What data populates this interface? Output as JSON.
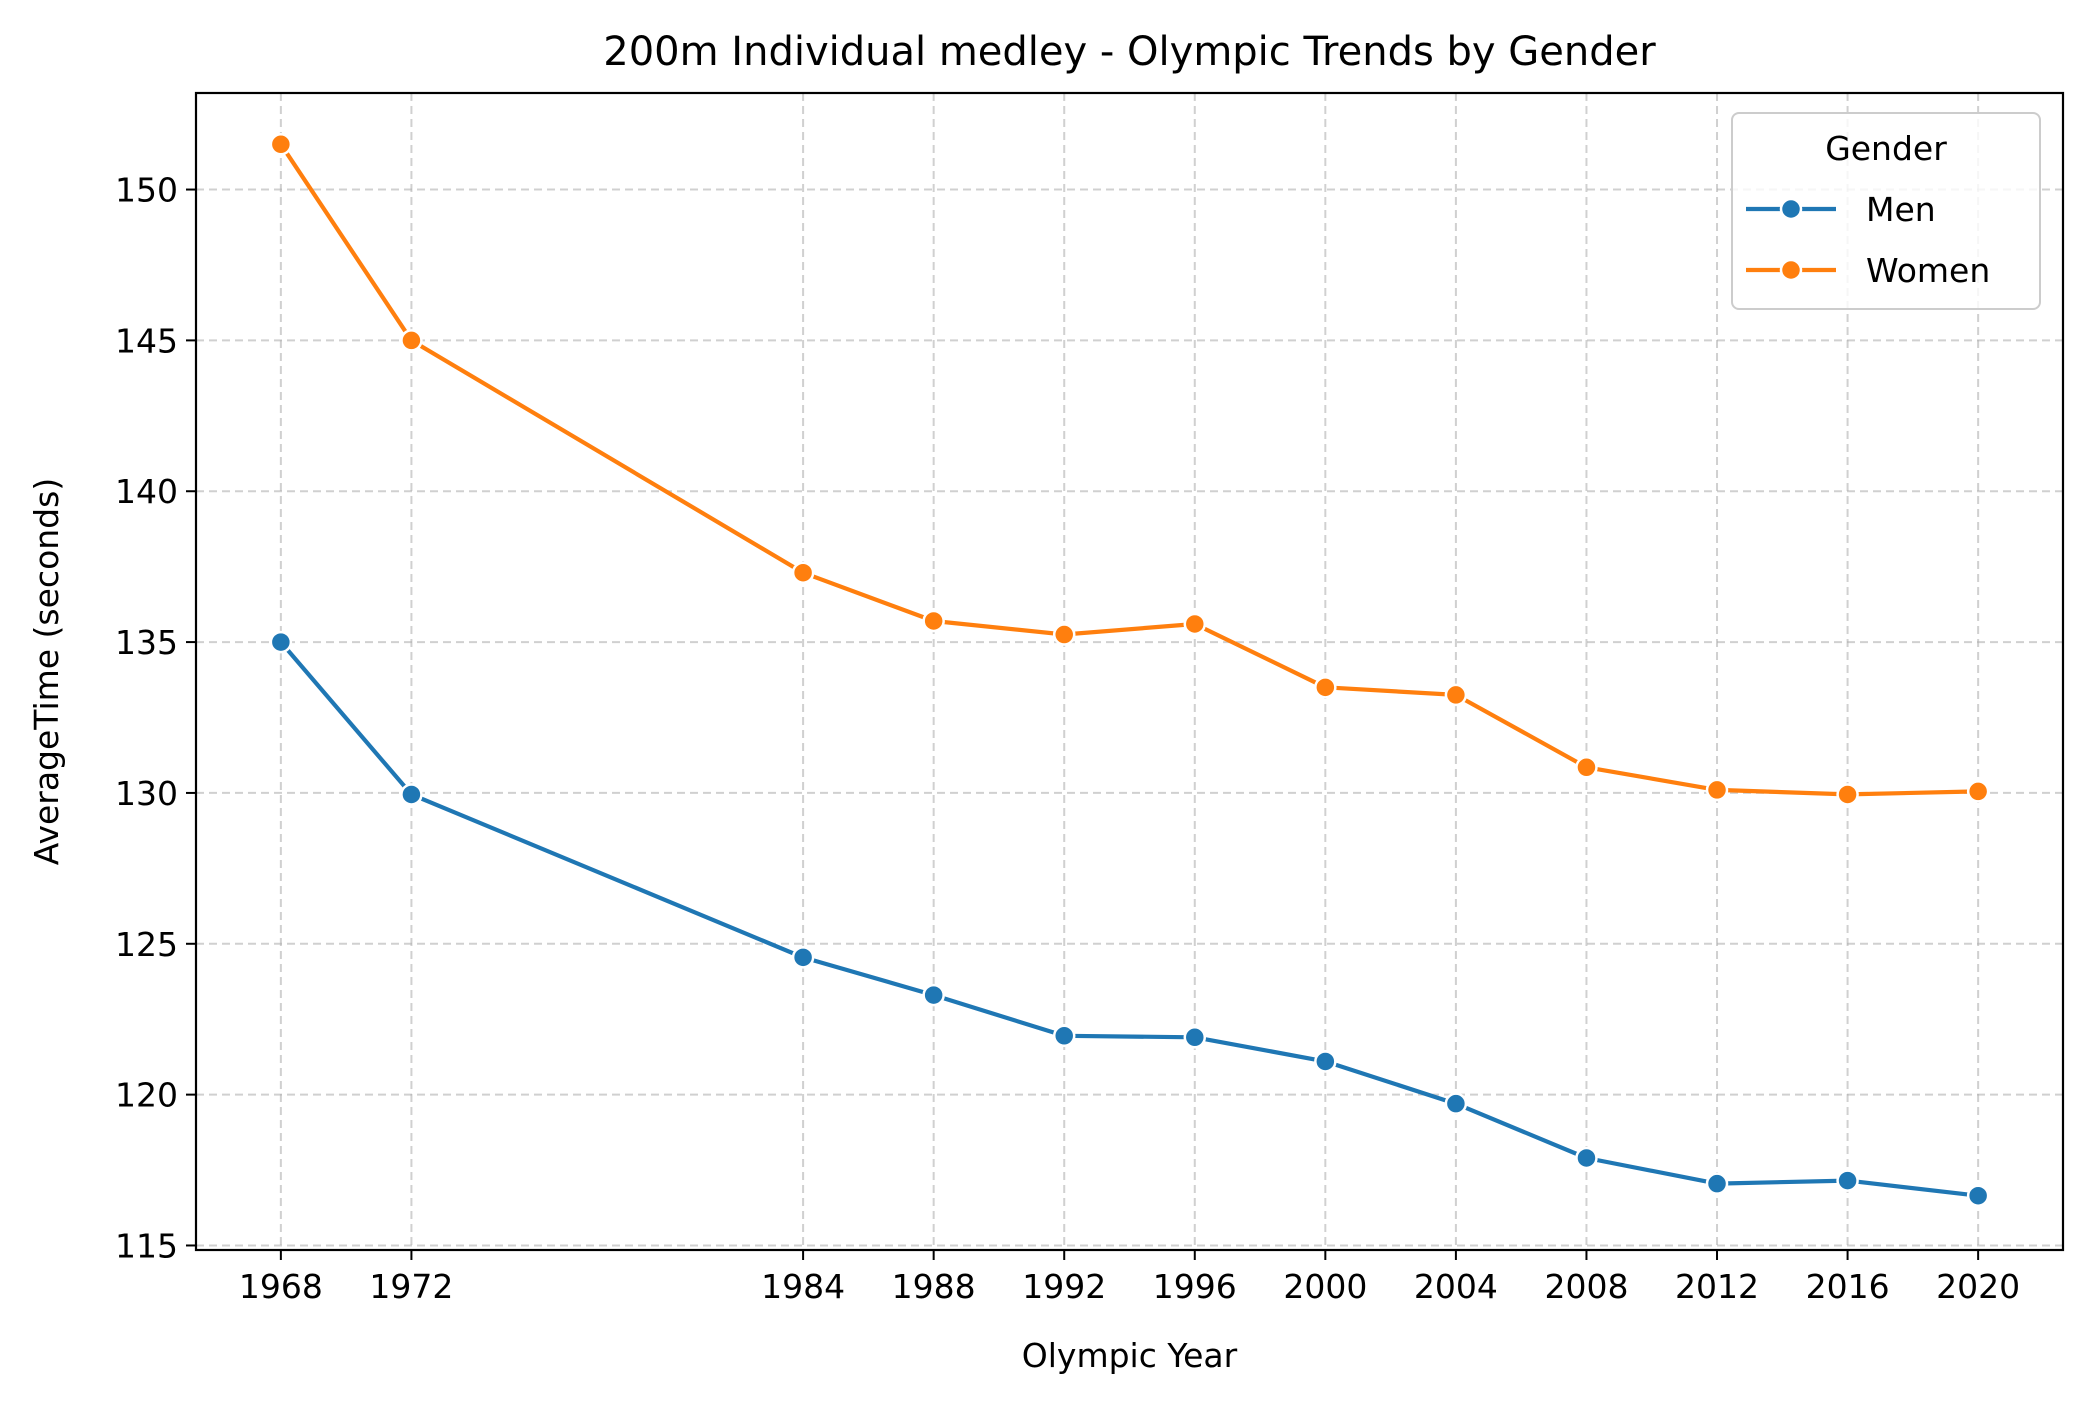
{
  "chart_data": {
    "type": "line",
    "title": "200m Individual medley - Olympic Trends by Gender",
    "xlabel": "Olympic Year",
    "ylabel": "AverageTime (seconds)",
    "x": [
      1968,
      1972,
      1984,
      1988,
      1992,
      1996,
      2000,
      2004,
      2008,
      2012,
      2016,
      2020
    ],
    "xticks": [
      "1968",
      "1972",
      "1984",
      "1988",
      "1992",
      "1996",
      "2000",
      "2004",
      "2008",
      "2012",
      "2016",
      "2020"
    ],
    "xlim": [
      1965.4,
      2022.6
    ],
    "ylim": [
      114.85,
      153.2
    ],
    "yticks": [
      115,
      120,
      125,
      130,
      135,
      140,
      145,
      150
    ],
    "grid": true,
    "legend": {
      "title": "Gender",
      "placement": "top-right"
    },
    "series": [
      {
        "name": "Men",
        "color": "#1f77b4",
        "values": [
          135.0,
          129.95,
          124.55,
          123.3,
          121.95,
          121.9,
          121.1,
          119.7,
          117.9,
          117.05,
          117.15,
          116.65
        ]
      },
      {
        "name": "Women",
        "color": "#ff7f0e",
        "values": [
          151.5,
          145.0,
          137.3,
          135.7,
          135.25,
          135.6,
          133.5,
          133.25,
          130.85,
          130.1,
          129.95,
          130.05
        ]
      }
    ]
  }
}
